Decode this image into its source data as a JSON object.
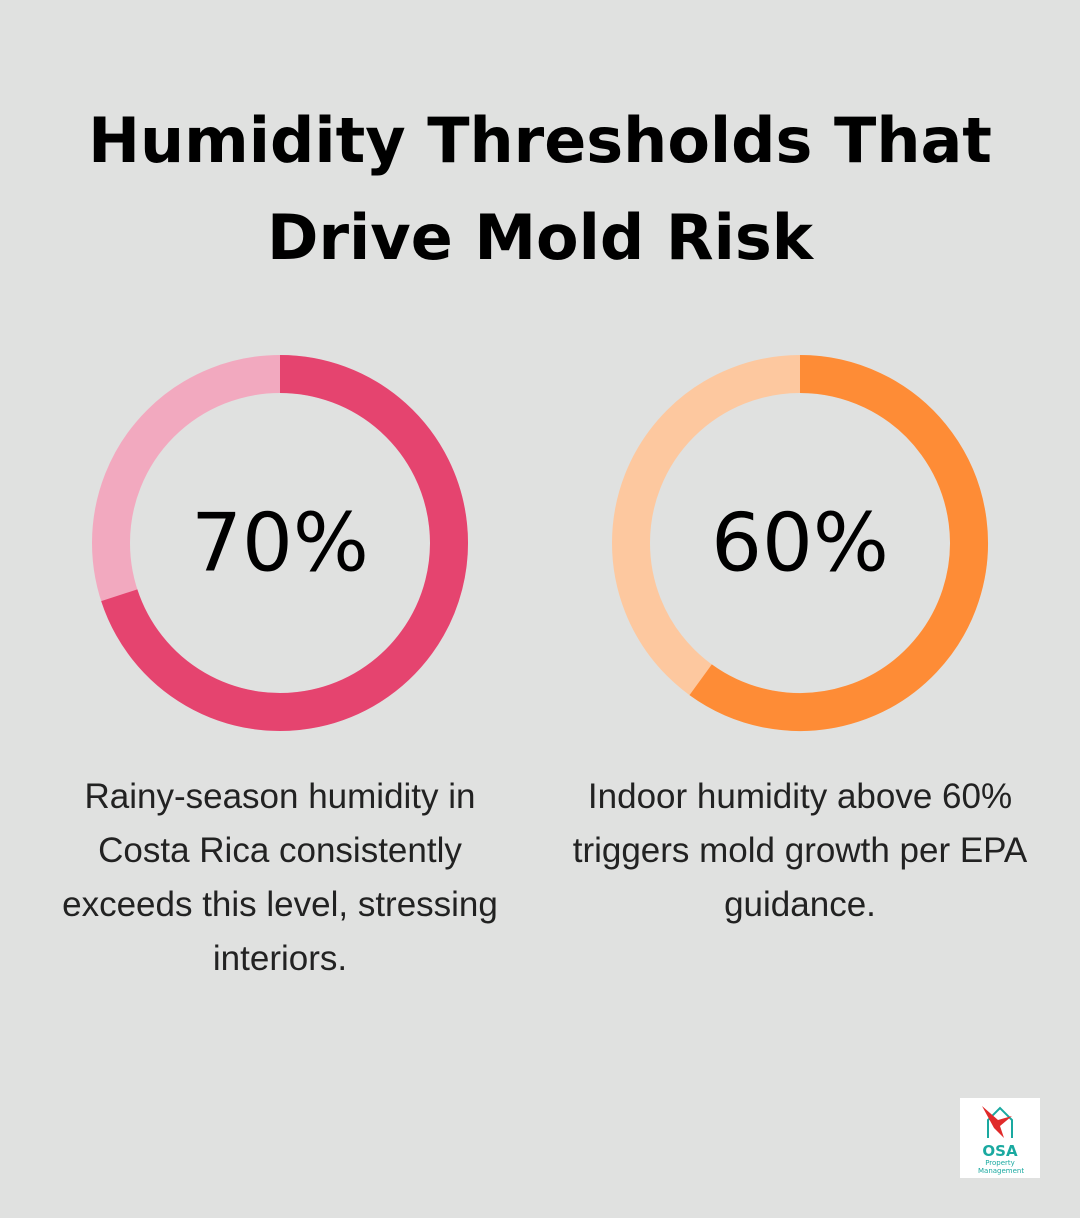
{
  "title": "Humidity Thresholds That Drive Mold Risk",
  "chart_data": [
    {
      "type": "donut",
      "values": [
        70
      ],
      "value_labels": [
        "70%"
      ],
      "ylim": [
        0,
        100
      ],
      "color": "#e5446f",
      "track_color": "#f2a9bf",
      "caption": "Rainy-season humidity in Costa Rica consistently exceeds this level, stressing interiors."
    },
    {
      "type": "donut",
      "values": [
        60
      ],
      "value_labels": [
        "60%"
      ],
      "ylim": [
        0,
        100
      ],
      "color": "#fe8c36",
      "track_color": "#fdc89f",
      "caption": "Indoor humidity above 60% triggers mold growth per EPA guidance."
    }
  ],
  "logo": {
    "name": "OSA",
    "tagline": "Property Management"
  }
}
